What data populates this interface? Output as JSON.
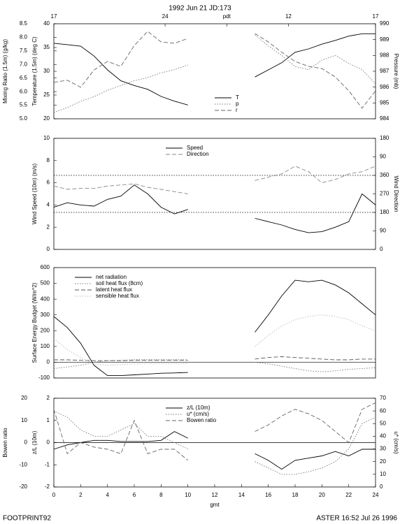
{
  "chart_data": [
    {
      "type": "line",
      "title": "1992 Jun 21 JD:173",
      "xlim": [
        0,
        24
      ],
      "x": [
        0,
        1,
        2,
        3,
        4,
        5,
        6,
        7,
        8,
        9,
        10,
        11,
        12,
        13,
        14,
        15,
        16,
        17,
        18,
        19,
        20,
        21,
        22,
        23,
        24
      ],
      "x2ticks": [
        {
          "value": 0,
          "label": "17"
        },
        {
          "value": 8.3,
          "label": "24"
        },
        {
          "value": 12.9,
          "label": "pdt"
        },
        {
          "value": 17.5,
          "label": "12"
        },
        {
          "value": 24,
          "label": "17"
        }
      ],
      "axes": [
        {
          "side": "left",
          "label": "Temperature (1.5m) (deg C)",
          "lim": [
            20,
            40
          ],
          "ticks": [
            20,
            25,
            30,
            35,
            40
          ]
        },
        {
          "side": "left",
          "label": "Mixing Ratio (1.5m) (g/kg)",
          "lim": [
            5,
            8.5
          ],
          "ticks": [
            {
              "value": 5,
              "label": "5.0"
            },
            5.5,
            {
              "value": 6,
              "label": "6.0"
            },
            6.5,
            {
              "value": 7,
              "label": "7.0"
            },
            7.5,
            {
              "value": 8,
              "label": "8.0"
            },
            8.5
          ]
        },
        {
          "side": "right",
          "label": "Pressure (mb)",
          "lim": [
            984,
            990
          ],
          "ticks": [
            984,
            985,
            986,
            987,
            988,
            989,
            990
          ]
        }
      ],
      "legend": "lower right",
      "series": [
        {
          "name": "T",
          "axis": 0,
          "dash": "solid",
          "color": "#000000",
          "values": [
            35.9,
            35.6,
            35.3,
            33.2,
            30.3,
            28,
            27,
            26.2,
            24.7,
            23.7,
            22.9,
            null,
            null,
            null,
            null,
            28.8,
            30.3,
            31.8,
            34,
            34.7,
            35.7,
            36.5,
            37.4,
            37.9,
            37.9
          ]
        },
        {
          "name": "p",
          "axis": 2,
          "dash": "dotted",
          "color": "#777777",
          "values": [
            984.4,
            984.7,
            985.1,
            985.4,
            985.8,
            986.1,
            986.4,
            986.6,
            986.9,
            987.1,
            987.4,
            null,
            null,
            null,
            null,
            989.3,
            988.6,
            988,
            987.3,
            987.1,
            987.7,
            988,
            987.5,
            987.1,
            986.2
          ]
        },
        {
          "name": "r",
          "axis": 1,
          "dash": "dashed",
          "color": "#666666",
          "values": [
            6.34,
            6.42,
            6.16,
            6.8,
            7.11,
            6.93,
            7.7,
            8.22,
            7.83,
            7.78,
            7.96,
            null,
            null,
            null,
            null,
            8.14,
            7.83,
            7.45,
            7.11,
            6.93,
            6.85,
            6.54,
            6.03,
            5.39,
            6.03
          ]
        }
      ]
    },
    {
      "type": "line",
      "xlim": [
        0,
        24
      ],
      "x": [
        0,
        1,
        2,
        3,
        4,
        5,
        6,
        7,
        8,
        9,
        10,
        11,
        12,
        13,
        14,
        15,
        16,
        17,
        18,
        19,
        20,
        21,
        22,
        23,
        24
      ],
      "axes": [
        {
          "side": "left",
          "label": "Wind Speed (10m) (m/s)",
          "lim": [
            0,
            10
          ],
          "ticks": [
            0,
            2,
            4,
            6,
            8,
            10
          ]
        },
        {
          "side": "right",
          "label": "Wind Direction",
          "lim": [
            0,
            540
          ],
          "ticks": [
            0,
            90,
            180,
            270,
            360,
            {
              "value": 450,
              "label": "90"
            },
            {
              "value": 540,
              "label": "180"
            }
          ]
        }
      ],
      "hlines": {
        "axis": 1,
        "style": "dotted",
        "values": [
          180,
          360
        ]
      },
      "legend": "upper center",
      "series": [
        {
          "name": "Speed",
          "axis": 0,
          "dash": "solid",
          "color": "#000000",
          "values": [
            3.8,
            4.2,
            4,
            3.9,
            4.5,
            4.8,
            5.8,
            5,
            3.8,
            3.2,
            3.6,
            null,
            null,
            null,
            null,
            2.8,
            2.5,
            2.2,
            1.8,
            1.5,
            1.6,
            2,
            2.5,
            5,
            4
          ]
        },
        {
          "name": "Direction",
          "axis": 1,
          "dash": "dashed",
          "color": "#888888",
          "values": [
            308,
            292,
            297,
            297,
            308,
            313,
            319,
            302,
            292,
            281,
            270,
            null,
            null,
            null,
            null,
            335,
            351,
            367,
            405,
            378,
            324,
            340,
            367,
            378,
            405
          ]
        }
      ]
    },
    {
      "type": "line",
      "xlim": [
        0,
        24
      ],
      "x": [
        0,
        1,
        2,
        3,
        4,
        5,
        6,
        7,
        8,
        9,
        10,
        11,
        12,
        13,
        14,
        15,
        16,
        17,
        18,
        19,
        20,
        21,
        22,
        23,
        24
      ],
      "axes": [
        {
          "side": "left",
          "label": "Surface Energy Budget (W/m^2)",
          "lim": [
            -100,
            600
          ],
          "ticks": [
            -100,
            0,
            100,
            200,
            300,
            400,
            500,
            600
          ]
        }
      ],
      "hlines": {
        "axis": 0,
        "style": "solid",
        "values": [
          0
        ]
      },
      "legend": "upper left",
      "series": [
        {
          "name": "net radiation",
          "axis": 0,
          "dash": "solid",
          "color": "#000000",
          "values": [
            290,
            220,
            120,
            -20,
            -85,
            -85,
            -80,
            -75,
            -70,
            -68,
            -65,
            null,
            null,
            null,
            null,
            190,
            300,
            420,
            520,
            510,
            520,
            490,
            440,
            370,
            300
          ]
        },
        {
          "name": "soil heat flux (8cm)",
          "axis": 0,
          "dash": "dotted",
          "color": "#777777",
          "values": [
            -40,
            -30,
            -20,
            0,
            10,
            12,
            15,
            15,
            15,
            15,
            15,
            null,
            null,
            null,
            null,
            0,
            -10,
            -25,
            -40,
            -55,
            -60,
            -55,
            -45,
            -40,
            -35
          ]
        },
        {
          "name": "latent heat flux",
          "axis": 0,
          "dash": "dashed",
          "color": "#555555",
          "values": [
            15,
            15,
            12,
            10,
            10,
            10,
            12,
            12,
            12,
            12,
            12,
            null,
            null,
            null,
            null,
            20,
            30,
            35,
            30,
            25,
            20,
            15,
            15,
            20,
            20
          ]
        },
        {
          "name": "sensible heat flux",
          "axis": 0,
          "dash": "dotted",
          "color": "#bbbbbb",
          "values": [
            150,
            80,
            30,
            -10,
            -20,
            -15,
            -12,
            -10,
            -10,
            -10,
            -10,
            null,
            null,
            null,
            null,
            100,
            170,
            230,
            270,
            290,
            300,
            290,
            270,
            230,
            200
          ]
        }
      ]
    },
    {
      "type": "line",
      "xlim": [
        0,
        24
      ],
      "xticks": [
        0,
        2,
        4,
        6,
        8,
        10,
        12,
        14,
        16,
        18,
        20,
        22,
        24
      ],
      "xlabel": "gmt",
      "x": [
        0,
        1,
        2,
        3,
        4,
        5,
        6,
        7,
        8,
        9,
        10,
        11,
        12,
        13,
        14,
        15,
        16,
        17,
        18,
        19,
        20,
        21,
        22,
        23,
        24
      ],
      "axes": [
        {
          "side": "left",
          "label": "z/L (10m)",
          "lim": [
            -2,
            2
          ],
          "ticks": [
            -2,
            -1,
            0,
            1,
            2
          ]
        },
        {
          "side": "left",
          "label": "Bowen ratio",
          "lim": [
            -20,
            20
          ],
          "ticks": [
            -20,
            -10,
            0,
            10,
            20
          ]
        },
        {
          "side": "right",
          "label": "u* (cm/s)",
          "lim": [
            0,
            70
          ],
          "ticks": [
            0,
            10,
            20,
            30,
            40,
            50,
            60,
            70
          ]
        }
      ],
      "hlines": {
        "axis": 0,
        "style": "solid",
        "values": [
          0
        ]
      },
      "legend": "upper center",
      "series": [
        {
          "name": "z/L (10m)",
          "axis": 0,
          "dash": "solid",
          "color": "#000000",
          "values": [
            -0.3,
            -0.1,
            0,
            0.1,
            0.1,
            0.05,
            0.05,
            0.05,
            0.1,
            0.5,
            0.2,
            null,
            null,
            null,
            null,
            -0.5,
            -0.8,
            -1.2,
            -0.8,
            -0.7,
            -0.6,
            -0.4,
            -0.6,
            -0.3,
            -0.3
          ]
        },
        {
          "name": "u* (cm/s)",
          "axis": 2,
          "dash": "dotted",
          "color": "#777777",
          "values": [
            60,
            55,
            45,
            40,
            40,
            45,
            50,
            40,
            40,
            35,
            30,
            null,
            null,
            null,
            null,
            20,
            15,
            10,
            10,
            12,
            15,
            20,
            30,
            50,
            55
          ]
        },
        {
          "name": "Bowen ratio",
          "axis": 1,
          "dash": "dashed",
          "color": "#666666",
          "values": [
            15,
            -5,
            0,
            -2,
            -3,
            -5,
            10,
            -5,
            -3,
            -3,
            -8,
            null,
            null,
            null,
            null,
            5,
            8,
            12,
            15,
            13,
            10,
            5,
            0,
            15,
            18
          ]
        }
      ]
    }
  ],
  "footer": {
    "left": "FOOTPRINT92",
    "right": "ASTER 16:52 Jul 26 1996"
  }
}
